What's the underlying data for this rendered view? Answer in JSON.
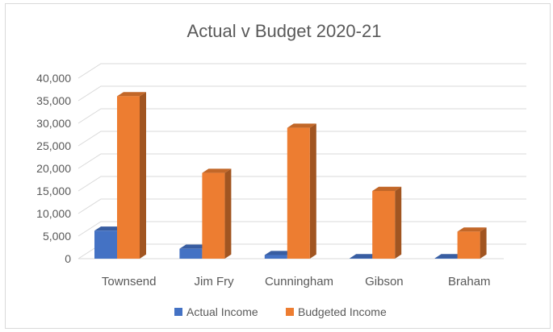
{
  "chart_data": {
    "type": "bar",
    "title": "Actual v Budget 2020-21",
    "categories": [
      "Townsend",
      "Jim Fry",
      "Cunningham",
      "Gibson",
      "Braham"
    ],
    "series": [
      {
        "name": "Actual Income",
        "values": [
          6200,
          2200,
          800,
          100,
          100
        ],
        "color": "#4472c4"
      },
      {
        "name": "Budgeted Income",
        "values": [
          36000,
          19000,
          29000,
          15000,
          6000
        ],
        "color": "#ed7d31"
      }
    ],
    "yticks": [
      "0",
      "5,000",
      "10,000",
      "15,000",
      "20,000",
      "25,000",
      "30,000",
      "35,000",
      "40,000"
    ],
    "ylim": [
      0,
      40000
    ],
    "grid": true,
    "legend_position": "bottom"
  }
}
